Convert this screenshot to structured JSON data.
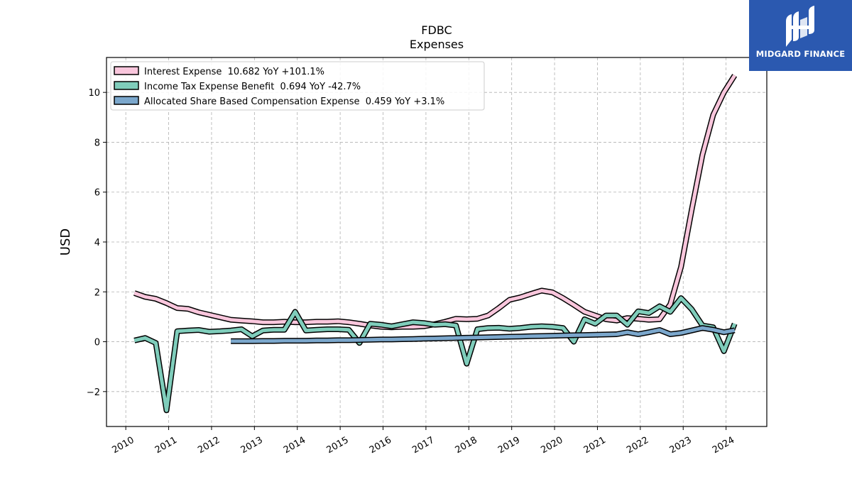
{
  "logo": {
    "name": "MIDGARD FINANCE"
  },
  "chart_data": {
    "type": "line",
    "title": "FDBC",
    "subtitle": "Expenses",
    "xlabel": "",
    "ylabel": "USD",
    "xlim": [
      2009.55,
      2024.95
    ],
    "ylim": [
      -3.4,
      11.4
    ],
    "grid": true,
    "legend_position": "top-left",
    "x_ticks": [
      "2010",
      "2011",
      "2012",
      "2013",
      "2014",
      "2015",
      "2016",
      "2017",
      "2018",
      "2019",
      "2020",
      "2021",
      "2022",
      "2023",
      "2024"
    ],
    "y_ticks": [
      -2,
      0,
      2,
      4,
      6,
      8,
      10
    ],
    "y_tick_labels": [
      "−2",
      "0",
      "2",
      "4",
      "6",
      "8",
      "10"
    ],
    "series": [
      {
        "name": "Interest Expense",
        "legend": "Interest Expense  10.682 YoY +101.1%",
        "color": "#f9c6dc",
        "x": [
          2010.2,
          2010.45,
          2010.7,
          2010.95,
          2011.2,
          2011.45,
          2011.7,
          2011.95,
          2012.2,
          2012.45,
          2012.7,
          2012.95,
          2013.2,
          2013.45,
          2013.7,
          2013.95,
          2014.2,
          2014.45,
          2014.7,
          2014.95,
          2015.2,
          2015.45,
          2015.7,
          2015.95,
          2016.2,
          2016.45,
          2016.7,
          2016.95,
          2017.2,
          2017.45,
          2017.7,
          2017.95,
          2018.2,
          2018.45,
          2018.7,
          2018.95,
          2019.2,
          2019.45,
          2019.7,
          2019.95,
          2020.2,
          2020.45,
          2020.7,
          2020.95,
          2021.2,
          2021.45,
          2021.7,
          2021.95,
          2022.2,
          2022.45,
          2022.7,
          2022.95,
          2023.2,
          2023.45,
          2023.7,
          2023.95,
          2024.2
        ],
        "y": [
          1.95,
          1.8,
          1.72,
          1.55,
          1.35,
          1.32,
          1.18,
          1.08,
          0.98,
          0.88,
          0.85,
          0.82,
          0.78,
          0.78,
          0.8,
          0.78,
          0.78,
          0.8,
          0.8,
          0.82,
          0.78,
          0.72,
          0.65,
          0.6,
          0.58,
          0.6,
          0.6,
          0.62,
          0.7,
          0.8,
          0.92,
          0.9,
          0.92,
          1.05,
          1.35,
          1.68,
          1.78,
          1.92,
          2.05,
          1.98,
          1.75,
          1.48,
          1.2,
          1.05,
          0.9,
          0.85,
          0.95,
          0.92,
          0.88,
          0.9,
          1.5,
          3.0,
          5.3,
          7.5,
          9.1,
          10.0,
          10.68
        ]
      },
      {
        "name": "Income Tax Expense Benefit",
        "legend": "Income Tax Expense Benefit  0.694 YoY -42.7%",
        "color": "#7fcdbb",
        "x": [
          2010.2,
          2010.45,
          2010.7,
          2010.95,
          2011.2,
          2011.45,
          2011.7,
          2011.95,
          2012.2,
          2012.45,
          2012.7,
          2012.95,
          2013.2,
          2013.45,
          2013.7,
          2013.95,
          2014.2,
          2014.45,
          2014.7,
          2014.95,
          2015.2,
          2015.45,
          2015.7,
          2015.95,
          2016.2,
          2016.45,
          2016.7,
          2016.95,
          2017.2,
          2017.45,
          2017.7,
          2017.95,
          2018.2,
          2018.45,
          2018.7,
          2018.95,
          2019.2,
          2019.45,
          2019.7,
          2019.95,
          2020.2,
          2020.45,
          2020.7,
          2020.95,
          2021.2,
          2021.45,
          2021.7,
          2021.95,
          2022.2,
          2022.45,
          2022.7,
          2022.95,
          2023.2,
          2023.45,
          2023.7,
          2023.95,
          2024.2
        ],
        "y": [
          0.05,
          0.15,
          -0.05,
          -2.75,
          0.42,
          0.45,
          0.47,
          0.4,
          0.42,
          0.45,
          0.5,
          0.22,
          0.45,
          0.48,
          0.48,
          1.2,
          0.45,
          0.48,
          0.5,
          0.5,
          0.48,
          -0.05,
          0.72,
          0.68,
          0.62,
          0.7,
          0.78,
          0.75,
          0.68,
          0.7,
          0.65,
          -0.88,
          0.5,
          0.55,
          0.56,
          0.52,
          0.55,
          0.6,
          0.62,
          0.6,
          0.55,
          0.0,
          0.9,
          0.72,
          1.05,
          1.05,
          0.68,
          1.22,
          1.15,
          1.42,
          1.2,
          1.75,
          1.3,
          0.65,
          0.58,
          -0.38,
          0.72
        ]
      },
      {
        "name": "Allocated Share Based Compensation Expense",
        "legend": "Allocated Share Based Compensation Expense  0.459 YoY +3.1%",
        "color": "#7ba7cc",
        "x": [
          2012.45,
          2012.7,
          2012.95,
          2013.2,
          2013.45,
          2013.7,
          2013.95,
          2014.2,
          2014.45,
          2014.7,
          2014.95,
          2015.2,
          2015.45,
          2015.7,
          2015.95,
          2016.2,
          2016.45,
          2016.7,
          2016.95,
          2017.2,
          2017.45,
          2017.7,
          2017.95,
          2018.2,
          2018.45,
          2018.7,
          2018.95,
          2019.2,
          2019.45,
          2019.7,
          2019.95,
          2020.2,
          2020.45,
          2020.7,
          2020.95,
          2021.2,
          2021.45,
          2021.7,
          2021.95,
          2022.2,
          2022.45,
          2022.7,
          2022.95,
          2023.2,
          2023.45,
          2023.7,
          2023.95,
          2024.2
        ],
        "y": [
          0.02,
          0.02,
          0.02,
          0.03,
          0.03,
          0.04,
          0.04,
          0.04,
          0.05,
          0.05,
          0.06,
          0.06,
          0.07,
          0.08,
          0.09,
          0.09,
          0.1,
          0.11,
          0.12,
          0.13,
          0.14,
          0.15,
          0.16,
          0.17,
          0.18,
          0.19,
          0.2,
          0.21,
          0.22,
          0.23,
          0.24,
          0.25,
          0.26,
          0.27,
          0.28,
          0.29,
          0.3,
          0.38,
          0.3,
          0.38,
          0.47,
          0.3,
          0.35,
          0.45,
          0.55,
          0.48,
          0.38,
          0.46
        ]
      }
    ]
  }
}
